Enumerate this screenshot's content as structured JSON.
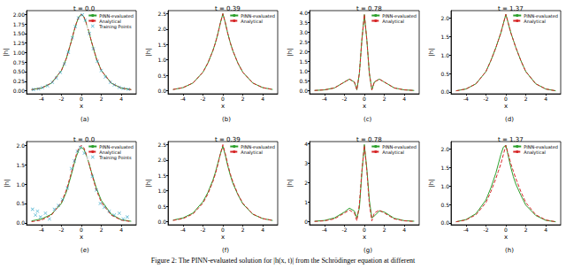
{
  "caption": "Figure 2: The PINN-evaluated solution for |h(x, t)| from the Schrödinger equation at different",
  "chart_data": [
    {
      "type": "line",
      "title": "t = 0.0",
      "label": "(a)",
      "x_label": "x",
      "y_label": "|h|",
      "legend": "upper right",
      "xlim": [
        -5.5,
        5.5
      ],
      "xticks": [
        -4,
        -2,
        0,
        2,
        4
      ],
      "ylim": [
        -0.08,
        2.1
      ],
      "yticks": [
        {
          "value": 0,
          "label": "0.00"
        },
        {
          "value": 0.25,
          "label": "0.25"
        },
        {
          "value": 0.5,
          "label": "0.50"
        },
        {
          "value": 0.75,
          "label": "0.75"
        },
        {
          "value": 1,
          "label": "1.00"
        },
        {
          "value": 1.25,
          "label": "1.25"
        },
        {
          "value": 1.5,
          "label": "1.50"
        },
        {
          "value": 1.75,
          "label": "1.75"
        },
        {
          "value": 2,
          "label": "2.00"
        }
      ],
      "x": [
        -5,
        -4,
        -3,
        -2,
        -1.5,
        -1,
        -0.75,
        -0.5,
        -0.25,
        0,
        0.25,
        0.5,
        0.75,
        1,
        1.5,
        2,
        3,
        4,
        5
      ],
      "series": [
        {
          "name": "PINN-evaluated",
          "color": "#2ca02c",
          "line_style": "solid",
          "values": [
            0.03,
            0.07,
            0.2,
            0.53,
            0.85,
            1.3,
            1.55,
            1.77,
            1.94,
            2.0,
            1.94,
            1.77,
            1.55,
            1.3,
            0.85,
            0.53,
            0.2,
            0.07,
            0.03
          ]
        },
        {
          "name": "Analytical",
          "color": "#d62728",
          "line_style": "dashed",
          "values": [
            0.03,
            0.07,
            0.2,
            0.53,
            0.85,
            1.3,
            1.55,
            1.77,
            1.94,
            2.0,
            1.94,
            1.77,
            1.55,
            1.3,
            0.85,
            0.53,
            0.2,
            0.07,
            0.03
          ]
        },
        {
          "name": "Training Points",
          "type": "scatter",
          "marker": "x",
          "color": "#1f9fc4",
          "x": [
            -4.8,
            -4.3,
            -3.9,
            -3.4,
            -2.9,
            -2.5,
            -2.1,
            -1.7,
            -1.3,
            -0.9,
            -0.6,
            -0.3,
            0.1,
            0.4,
            0.8,
            1.2,
            1.6,
            2.0,
            2.4,
            2.9,
            3.3,
            3.8,
            4.2,
            4.7
          ],
          "values": [
            0.03,
            0.05,
            0.08,
            0.13,
            0.22,
            0.33,
            0.48,
            0.7,
            1.01,
            1.39,
            1.68,
            1.91,
            1.99,
            1.85,
            1.5,
            1.1,
            0.77,
            0.53,
            0.36,
            0.22,
            0.15,
            0.09,
            0.06,
            0.04
          ]
        }
      ]
    },
    {
      "type": "line",
      "title": "t = 0.39",
      "label": "(b)",
      "x_label": "x",
      "y_label": "|h|",
      "legend": "upper right",
      "xlim": [
        -5.5,
        5.5
      ],
      "xticks": [
        -4,
        -2,
        0,
        2,
        4
      ],
      "ylim": [
        -0.1,
        2.6
      ],
      "yticks": [
        {
          "value": 0,
          "label": "0.0"
        },
        {
          "value": 0.5,
          "label": "0.5"
        },
        {
          "value": 1,
          "label": "1.0"
        },
        {
          "value": 1.5,
          "label": "1.5"
        },
        {
          "value": 2,
          "label": "2.0"
        },
        {
          "value": 2.5,
          "label": "2.5"
        }
      ],
      "x": [
        -5,
        -4,
        -3,
        -2,
        -1.5,
        -1,
        -0.75,
        -0.5,
        -0.25,
        0,
        0.25,
        0.5,
        0.75,
        1,
        1.5,
        2,
        3,
        4,
        5
      ],
      "series": [
        {
          "name": "PINN-evaluated",
          "color": "#2ca02c",
          "line_style": "solid",
          "values": [
            0.04,
            0.1,
            0.25,
            0.6,
            0.9,
            1.3,
            1.55,
            1.85,
            2.2,
            2.5,
            2.2,
            1.85,
            1.55,
            1.3,
            0.9,
            0.6,
            0.25,
            0.1,
            0.04
          ]
        },
        {
          "name": "Analytical",
          "color": "#d62728",
          "line_style": "dashed",
          "values": [
            0.04,
            0.1,
            0.25,
            0.6,
            0.9,
            1.3,
            1.55,
            1.85,
            2.2,
            2.5,
            2.2,
            1.85,
            1.55,
            1.3,
            0.9,
            0.6,
            0.25,
            0.1,
            0.04
          ]
        }
      ]
    },
    {
      "type": "line",
      "title": "t = 0.78",
      "label": "(c)",
      "x_label": "x",
      "y_label": "|h|",
      "legend": "upper right",
      "xlim": [
        -5.5,
        5.5
      ],
      "xticks": [
        -4,
        -2,
        0,
        2,
        4
      ],
      "ylim": [
        -0.15,
        4.1
      ],
      "yticks": [
        {
          "value": 0,
          "label": "0.0"
        },
        {
          "value": 0.5,
          "label": "0.5"
        },
        {
          "value": 1,
          "label": "1.0"
        },
        {
          "value": 1.5,
          "label": "1.5"
        },
        {
          "value": 2,
          "label": "2.0"
        },
        {
          "value": 2.5,
          "label": "2.5"
        },
        {
          "value": 3,
          "label": "3.0"
        },
        {
          "value": 3.5,
          "label": "3.5"
        },
        {
          "value": 4,
          "label": "4.0"
        }
      ],
      "x": [
        -5,
        -4,
        -3,
        -2,
        -1.5,
        -1,
        -0.75,
        -0.5,
        -0.25,
        0,
        0.25,
        0.5,
        0.75,
        1,
        1.5,
        2,
        3,
        4,
        5
      ],
      "series": [
        {
          "name": "PINN-evaluated",
          "color": "#2ca02c",
          "line_style": "solid",
          "values": [
            0.02,
            0.05,
            0.15,
            0.45,
            0.6,
            0.45,
            0.05,
            0.9,
            2.6,
            3.9,
            2.6,
            0.9,
            0.05,
            0.45,
            0.6,
            0.45,
            0.15,
            0.05,
            0.02
          ]
        },
        {
          "name": "Analytical",
          "color": "#d62728",
          "line_style": "dashed",
          "values": [
            0.02,
            0.05,
            0.15,
            0.45,
            0.6,
            0.45,
            0.05,
            0.9,
            2.6,
            3.9,
            2.6,
            0.9,
            0.05,
            0.45,
            0.6,
            0.45,
            0.15,
            0.05,
            0.02
          ]
        }
      ]
    },
    {
      "type": "line",
      "title": "t = 1.37",
      "label": "(d)",
      "x_label": "x",
      "y_label": "|h|",
      "legend": "upper right",
      "xlim": [
        -5.5,
        5.5
      ],
      "xticks": [
        -4,
        -2,
        0,
        2,
        4
      ],
      "ylim": [
        -0.05,
        2.2
      ],
      "yticks": [
        {
          "value": 0,
          "label": "0.0"
        },
        {
          "value": 0.5,
          "label": "0.5"
        },
        {
          "value": 1,
          "label": "1.0"
        },
        {
          "value": 1.5,
          "label": "1.5"
        },
        {
          "value": 2,
          "label": "2.0"
        }
      ],
      "x": [
        -5,
        -4,
        -3,
        -2,
        -1.5,
        -1,
        -0.75,
        -0.5,
        -0.25,
        0,
        0.25,
        0.5,
        0.75,
        1,
        1.5,
        2,
        3,
        4,
        5
      ],
      "series": [
        {
          "name": "PINN-evaluated",
          "color": "#2ca02c",
          "line_style": "solid",
          "values": [
            0.03,
            0.08,
            0.22,
            0.55,
            0.85,
            1.2,
            1.4,
            1.6,
            1.85,
            2.1,
            1.85,
            1.6,
            1.4,
            1.2,
            0.85,
            0.55,
            0.22,
            0.08,
            0.03
          ]
        },
        {
          "name": "Analytical",
          "color": "#d62728",
          "line_style": "dashed",
          "values": [
            0.03,
            0.08,
            0.22,
            0.55,
            0.85,
            1.2,
            1.4,
            1.6,
            1.85,
            2.1,
            1.85,
            1.6,
            1.4,
            1.2,
            0.85,
            0.55,
            0.22,
            0.08,
            0.03
          ]
        }
      ]
    },
    {
      "type": "line",
      "title": "t = 0.0",
      "label": "(e)",
      "x_label": "x",
      "y_label": "|h|",
      "legend": "upper right",
      "xlim": [
        -5.5,
        5.5
      ],
      "xticks": [
        -4,
        -2,
        0,
        2,
        4
      ],
      "ylim": [
        -0.05,
        2.1
      ],
      "yticks": [
        {
          "value": 0,
          "label": "0.0"
        },
        {
          "value": 0.5,
          "label": "0.5"
        },
        {
          "value": 1,
          "label": "1.0"
        },
        {
          "value": 1.5,
          "label": "1.5"
        },
        {
          "value": 2,
          "label": "2.0"
        }
      ],
      "x": [
        -5,
        -4,
        -3,
        -2,
        -1.5,
        -1,
        -0.75,
        -0.5,
        -0.25,
        0,
        0.25,
        0.5,
        0.75,
        1,
        1.5,
        2,
        3,
        4,
        5
      ],
      "series": [
        {
          "name": "PINN-evaluated",
          "color": "#2ca02c",
          "line_style": "solid",
          "values": [
            0.05,
            0.1,
            0.22,
            0.5,
            0.8,
            1.25,
            1.5,
            1.72,
            1.88,
            1.95,
            1.9,
            1.75,
            1.55,
            1.32,
            0.9,
            0.58,
            0.22,
            0.08,
            0.04
          ]
        },
        {
          "name": "Analytical",
          "color": "#d62728",
          "line_style": "dashed",
          "values": [
            0.03,
            0.07,
            0.2,
            0.53,
            0.85,
            1.3,
            1.55,
            1.77,
            1.94,
            2.0,
            1.94,
            1.77,
            1.55,
            1.3,
            0.85,
            0.53,
            0.2,
            0.07,
            0.03
          ]
        },
        {
          "name": "Training Points",
          "type": "scatter",
          "marker": "x",
          "color": "#1f9fc4",
          "x": [
            -4.9,
            -4.6,
            -4.4,
            -4.1,
            -3.6,
            -3.2,
            -2.7,
            -2.3,
            -1.9,
            -1.4,
            -1.0,
            -0.7,
            -0.4,
            -0.1,
            0.3,
            0.7,
            1.1,
            1.5,
            1.9,
            2.3,
            2.8,
            3.3,
            3.8,
            4.2,
            4.6
          ],
          "values": [
            0.35,
            0.2,
            0.3,
            0.15,
            0.25,
            0.1,
            0.35,
            0.45,
            0.6,
            0.9,
            1.4,
            1.6,
            1.85,
            1.95,
            1.8,
            1.7,
            1.2,
            0.85,
            0.5,
            0.4,
            0.3,
            0.2,
            0.25,
            0.1,
            0.15
          ]
        }
      ]
    },
    {
      "type": "line",
      "title": "t = 0.39",
      "label": "(f)",
      "x_label": "x",
      "y_label": "|h|",
      "legend": "upper right",
      "xlim": [
        -5.5,
        5.5
      ],
      "xticks": [
        -4,
        -2,
        0,
        2,
        4
      ],
      "ylim": [
        -0.1,
        2.6
      ],
      "yticks": [
        {
          "value": 0,
          "label": "0.0"
        },
        {
          "value": 0.5,
          "label": "0.5"
        },
        {
          "value": 1,
          "label": "1.0"
        },
        {
          "value": 1.5,
          "label": "1.5"
        },
        {
          "value": 2,
          "label": "2.0"
        },
        {
          "value": 2.5,
          "label": "2.5"
        }
      ],
      "x": [
        -5,
        -4,
        -3,
        -2,
        -1.5,
        -1,
        -0.75,
        -0.5,
        -0.25,
        0,
        0.25,
        0.5,
        0.75,
        1,
        1.5,
        2,
        3,
        4,
        5
      ],
      "series": [
        {
          "name": "PINN-evaluated",
          "color": "#2ca02c",
          "line_style": "solid",
          "values": [
            0.05,
            0.12,
            0.28,
            0.65,
            0.95,
            1.35,
            1.6,
            1.9,
            2.2,
            2.45,
            2.15,
            1.8,
            1.5,
            1.25,
            0.88,
            0.58,
            0.24,
            0.1,
            0.04
          ]
        },
        {
          "name": "Analytical",
          "color": "#d62728",
          "line_style": "dashed",
          "values": [
            0.04,
            0.1,
            0.25,
            0.6,
            0.9,
            1.3,
            1.55,
            1.85,
            2.2,
            2.5,
            2.2,
            1.85,
            1.55,
            1.3,
            0.9,
            0.6,
            0.25,
            0.1,
            0.04
          ]
        }
      ]
    },
    {
      "type": "line",
      "title": "t = 0.78",
      "label": "(g)",
      "x_label": "x",
      "y_label": "|h|",
      "legend": "upper right",
      "xlim": [
        -5.5,
        5.5
      ],
      "xticks": [
        -4,
        -2,
        0,
        2,
        4
      ],
      "ylim": [
        -0.15,
        4.1
      ],
      "yticks": [
        0,
        1,
        2,
        3,
        4
      ],
      "x": [
        -5,
        -4,
        -3,
        -2,
        -1.5,
        -1,
        -0.75,
        -0.5,
        -0.25,
        0,
        0.25,
        0.5,
        0.75,
        1,
        1.5,
        2,
        3,
        4,
        5
      ],
      "series": [
        {
          "name": "PINN-evaluated",
          "color": "#2ca02c",
          "line_style": "solid",
          "values": [
            0.03,
            0.07,
            0.2,
            0.5,
            0.7,
            0.55,
            0.2,
            0.7,
            2.5,
            3.95,
            2.7,
            1.1,
            0.2,
            0.3,
            0.55,
            0.5,
            0.18,
            0.06,
            0.03
          ]
        },
        {
          "name": "Analytical",
          "color": "#d62728",
          "line_style": "dashed",
          "values": [
            0.02,
            0.05,
            0.15,
            0.45,
            0.6,
            0.45,
            0.05,
            0.9,
            2.6,
            3.9,
            2.6,
            0.9,
            0.05,
            0.45,
            0.6,
            0.45,
            0.15,
            0.05,
            0.02
          ]
        }
      ]
    },
    {
      "type": "line",
      "title": "t = 1.37",
      "label": "(h)",
      "x_label": "x",
      "y_label": "|h|",
      "legend": "upper right",
      "xlim": [
        -5.5,
        5.5
      ],
      "xticks": [
        -4,
        -2,
        0,
        2,
        4
      ],
      "ylim": [
        -0.05,
        2.2
      ],
      "yticks": [
        {
          "value": 0,
          "label": "0.0"
        },
        {
          "value": 0.5,
          "label": "0.5"
        },
        {
          "value": 1,
          "label": "1.0"
        },
        {
          "value": 1.5,
          "label": "1.5"
        },
        {
          "value": 2,
          "label": "2.0"
        }
      ],
      "x": [
        -5,
        -4,
        -3,
        -2,
        -1.5,
        -1,
        -0.75,
        -0.5,
        -0.25,
        0,
        0.25,
        0.5,
        0.75,
        1,
        1.5,
        2,
        3,
        4,
        5
      ],
      "series": [
        {
          "name": "PINN-evaluated",
          "color": "#2ca02c",
          "line_style": "solid",
          "values": [
            0.03,
            0.09,
            0.25,
            0.62,
            0.95,
            1.35,
            1.6,
            1.85,
            2.05,
            2.1,
            1.8,
            1.5,
            1.25,
            1.05,
            0.75,
            0.48,
            0.2,
            0.07,
            0.03
          ]
        },
        {
          "name": "Analytical",
          "color": "#d62728",
          "line_style": "dashed",
          "values": [
            0.03,
            0.08,
            0.22,
            0.55,
            0.85,
            1.2,
            1.4,
            1.6,
            1.85,
            2.1,
            1.85,
            1.6,
            1.4,
            1.2,
            0.85,
            0.55,
            0.22,
            0.08,
            0.03
          ]
        }
      ]
    }
  ]
}
